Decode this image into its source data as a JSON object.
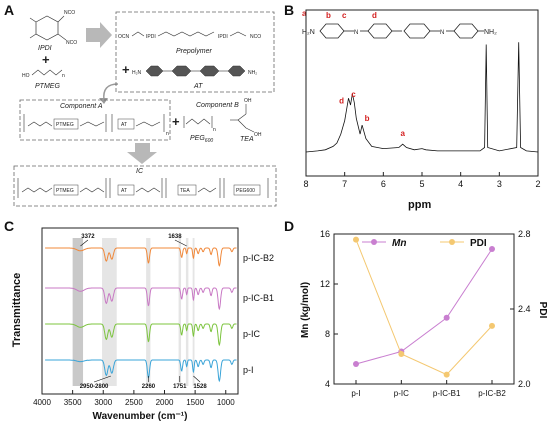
{
  "panels": {
    "A": {
      "letter": "A",
      "labels": {
        "ipdi": "IPDI",
        "ptmeg": "PTMEG",
        "prepolymer": "Prepolymer",
        "at": "AT",
        "component_a": "Component A",
        "component_b": "Component B",
        "peg": "PEG",
        "peg_sub": "600",
        "tea": "TEA",
        "ic": "IC",
        "nco": "NCO",
        "ocn": "OCN",
        "ipdi_box": "IPDI",
        "ptmeg_box": "PTMEG",
        "at_box": "AT",
        "tea_box": "TEA",
        "peg600_box": "PEG600",
        "nh2": "NH₂",
        "h2n": "H₂N",
        "ho": "HO",
        "oh": "OH",
        "n": "n",
        "plus": "+"
      }
    },
    "B": {
      "letter": "B",
      "chart_data": {
        "type": "line",
        "xlabel": "ppm",
        "xlim": [
          8,
          2
        ],
        "ticks": [
          8,
          7,
          6,
          5,
          4,
          3,
          2
        ],
        "annotations": [
          "a",
          "b",
          "c",
          "d"
        ],
        "molecule_labels": [
          "a",
          "b",
          "c",
          "d"
        ],
        "molecule_text": {
          "h2n": "H₂N",
          "nh2": "NH₂",
          "n": "N"
        },
        "spectrum": [
          [
            8,
            0
          ],
          [
            7.7,
            0.01
          ],
          [
            7.5,
            0.02
          ],
          [
            7.3,
            0.05
          ],
          [
            7.2,
            0.08
          ],
          [
            7.1,
            0.16
          ],
          [
            7.0,
            0.28
          ],
          [
            6.95,
            0.38
          ],
          [
            6.9,
            0.48
          ],
          [
            6.85,
            0.42
          ],
          [
            6.8,
            0.52
          ],
          [
            6.75,
            0.44
          ],
          [
            6.7,
            0.3
          ],
          [
            6.6,
            0.16
          ],
          [
            6.55,
            0.24
          ],
          [
            6.45,
            0.12
          ],
          [
            6.3,
            0.05
          ],
          [
            6.0,
            0.03
          ],
          [
            5.6,
            0.04
          ],
          [
            5.5,
            0.07
          ],
          [
            5.4,
            0.04
          ],
          [
            5.2,
            0.02
          ],
          [
            5.0,
            0.03
          ],
          [
            4.9,
            0.02
          ],
          [
            4.6,
            0.01
          ],
          [
            4.0,
            0.01
          ],
          [
            3.5,
            0.01
          ],
          [
            3.38,
            0.04
          ],
          [
            3.34,
            0.96
          ],
          [
            3.3,
            0.04
          ],
          [
            3.0,
            0.01
          ],
          [
            2.55,
            0.04
          ],
          [
            2.5,
            0.98
          ],
          [
            2.45,
            0.04
          ],
          [
            2.3,
            0.01
          ],
          [
            2,
            0
          ]
        ],
        "peak_positions": [
          [
            5.5,
            "a"
          ],
          [
            6.55,
            "b"
          ],
          [
            6.85,
            "c"
          ],
          [
            6.95,
            "d"
          ]
        ]
      }
    },
    "C": {
      "letter": "C",
      "chart_data": {
        "type": "line",
        "xlabel": "Wavenumber (cm⁻¹)",
        "ylabel": "Transmittance",
        "xlim": [
          4000,
          800
        ],
        "ticks": [
          4000,
          3500,
          3000,
          2500,
          2000,
          1500,
          1000
        ],
        "series": [
          {
            "name": "p-IC-B2",
            "color": "#f0883a"
          },
          {
            "name": "p-IC-B1",
            "color": "#c878c4"
          },
          {
            "name": "p-IC",
            "color": "#7cc43e"
          },
          {
            "name": "p-I",
            "color": "#3aa4d8"
          }
        ],
        "shaded_regions": [
          [
            3500,
            3330
          ],
          [
            3020,
            2780
          ],
          [
            2300,
            2230
          ],
          [
            1770,
            1730
          ],
          [
            1650,
            1610
          ],
          [
            1540,
            1510
          ]
        ],
        "annotations_top": [
          "3372",
          "1638"
        ],
        "annotations_bottom": [
          "2950-2800",
          "2260",
          "1751",
          "1528"
        ],
        "bands": [
          [
            3372,
            0.15,
            60
          ],
          [
            2950,
            0.7,
            25
          ],
          [
            2860,
            0.6,
            25
          ],
          [
            2262,
            0.8,
            18
          ],
          [
            1720,
            0.5,
            15
          ],
          [
            1638,
            0.3,
            10
          ],
          [
            1528,
            0.55,
            12
          ],
          [
            1450,
            0.3,
            15
          ],
          [
            1370,
            0.2,
            15
          ],
          [
            1240,
            0.35,
            15
          ],
          [
            1105,
            0.95,
            20
          ],
          [
            900,
            0.2,
            15
          ]
        ]
      }
    },
    "D": {
      "letter": "D",
      "chart_data": {
        "type": "line",
        "categories": [
          "p-I",
          "p-IC",
          "p-IC-B1",
          "p-IC-B2"
        ],
        "series": [
          {
            "name": "Mn",
            "axis": "left",
            "values": [
              5.6,
              6.6,
              9.3,
              14.8
            ],
            "color": "#c97fd0"
          },
          {
            "name": "PDI",
            "axis": "right",
            "values": [
              2.77,
              2.16,
              2.05,
              2.31
            ],
            "color": "#f4c871"
          }
        ],
        "ylabel_left": "Mn (kg/mol)",
        "ylabel_right": "PDI",
        "ylim_left": [
          4,
          16
        ],
        "ylim_right": [
          2.0,
          2.8
        ],
        "yticks_left": [
          4,
          8,
          12,
          16
        ],
        "yticks_right": [
          2.0,
          2.4,
          2.8
        ],
        "legend_placement": "top"
      }
    }
  },
  "colors": {
    "arrow": "#b8b8b8",
    "red": "#d42020"
  }
}
